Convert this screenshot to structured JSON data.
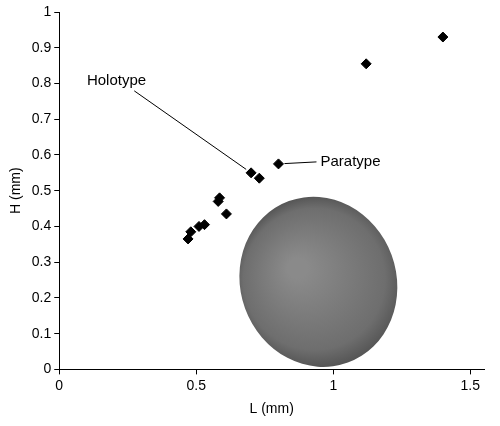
{
  "chart_data": {
    "type": "scatter",
    "x_label": "L (mm)",
    "y_label": "H (mm)",
    "x": [
      0.47,
      0.48,
      0.51,
      0.53,
      0.58,
      0.585,
      0.61,
      0.7,
      0.73,
      0.8,
      1.12,
      1.4
    ],
    "values": [
      0.365,
      0.385,
      0.4,
      0.405,
      0.47,
      0.48,
      0.435,
      0.55,
      0.535,
      0.575,
      0.855,
      0.93
    ],
    "color": "#000000",
    "marker": "diamond",
    "xlim": [
      0,
      1.55
    ],
    "xticks": [
      0,
      0.5,
      1,
      1.5
    ],
    "ylim": [
      0,
      1
    ],
    "yticks": [
      0,
      0.1,
      0.2,
      0.3,
      0.4,
      0.5,
      0.6,
      0.7,
      0.8,
      0.9,
      1
    ],
    "grid": false,
    "annotations": [
      {
        "text": "Holotype",
        "x": 0.7,
        "y": 0.55
      },
      {
        "text": "Paratype",
        "x": 0.8,
        "y": 0.575
      }
    ]
  }
}
